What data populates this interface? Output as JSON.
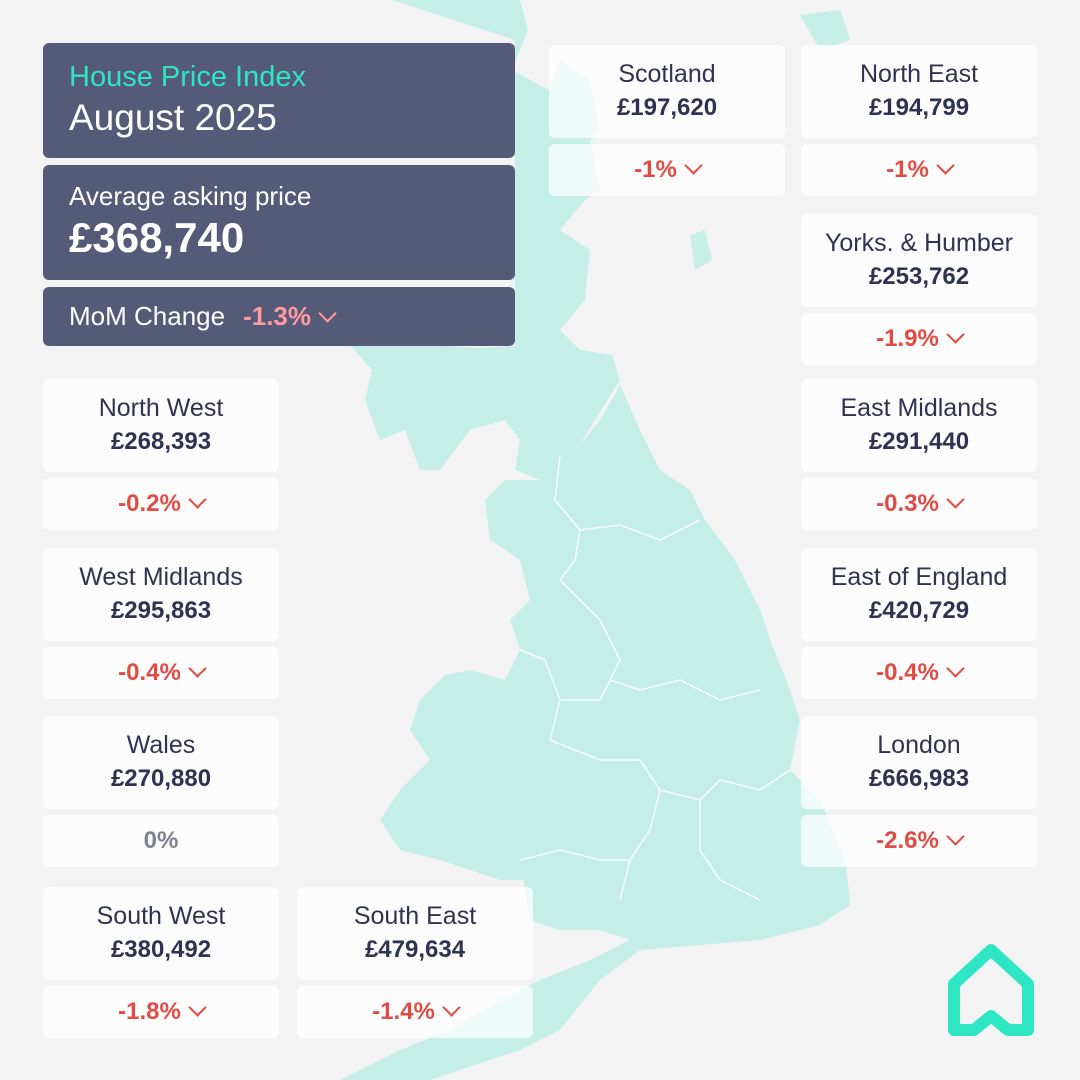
{
  "header": {
    "title": "House Price Index",
    "period": "August 2025",
    "avg_label": "Average asking price",
    "avg_price": "£368,740",
    "mom_label": "MoM Change",
    "mom_value": "-1.3%"
  },
  "regions": {
    "scotland": {
      "name": "Scotland",
      "price": "£197,620",
      "change": "-1%"
    },
    "north_east": {
      "name": "North East",
      "price": "£194,799",
      "change": "-1%"
    },
    "yorks": {
      "name": "Yorks. & Humber",
      "price": "£253,762",
      "change": "-1.9%"
    },
    "north_west": {
      "name": "North West",
      "price": "£268,393",
      "change": "-0.2%"
    },
    "east_midlands": {
      "name": "East Midlands",
      "price": "£291,440",
      "change": "-0.3%"
    },
    "west_midlands": {
      "name": "West Midlands",
      "price": "£295,863",
      "change": "-0.4%"
    },
    "east_of_england": {
      "name": "East of England",
      "price": "£420,729",
      "change": "-0.4%"
    },
    "wales": {
      "name": "Wales",
      "price": "£270,880",
      "change": "0%"
    },
    "london": {
      "name": "London",
      "price": "£666,983",
      "change": "-2.6%"
    },
    "south_west": {
      "name": "South West",
      "price": "£380,492",
      "change": "-1.8%"
    },
    "south_east": {
      "name": "South East",
      "price": "£479,634",
      "change": "-1.4%"
    }
  },
  "colors": {
    "accent": "#2ee6c3",
    "negative": "#e24b44",
    "panel": "#484d6e",
    "land": "#c5efe6"
  },
  "icons": {
    "logo": "house-logo-icon",
    "down": "chevron-down-icon"
  }
}
